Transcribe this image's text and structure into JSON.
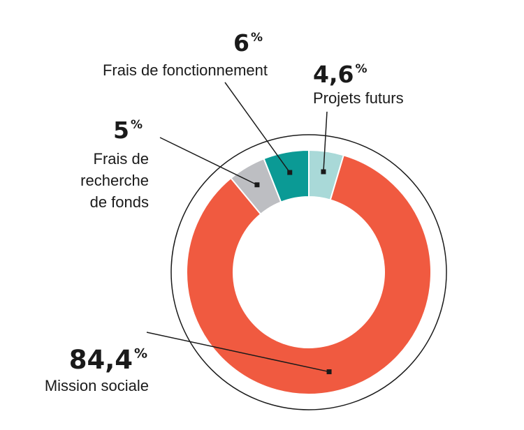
{
  "chart_data": {
    "type": "pie",
    "style": "donut",
    "slices": [
      {
        "key": "projets",
        "value": 4.6,
        "value_label": "4,6",
        "unit": "%",
        "label_lines": [
          "Projets futurs"
        ],
        "color": "#a9d9d8"
      },
      {
        "key": "mission",
        "value": 84.4,
        "value_label": "84,4",
        "unit": "%",
        "label_lines": [
          "Mission sociale"
        ],
        "color": "#f05a40"
      },
      {
        "key": "recherche",
        "value": 5,
        "value_label": "5",
        "unit": "%",
        "label_lines": [
          "Frais de",
          "recherche",
          "de fonds"
        ],
        "color": "#bdbec2"
      },
      {
        "key": "fonctionnement",
        "value": 6,
        "value_label": "6",
        "unit": "%",
        "label_lines": [
          "Frais de fonctionnement"
        ],
        "color": "#0b9a95"
      }
    ],
    "start": "top",
    "direction": "clockwise",
    "outer_ring": true
  }
}
